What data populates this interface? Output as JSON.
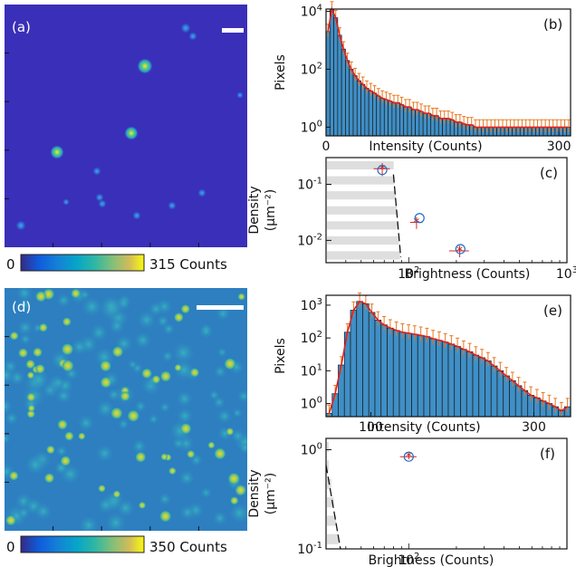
{
  "panels": {
    "a": {
      "letter": "(a)",
      "cbar_min": "0",
      "cbar_max": "315 Counts"
    },
    "d": {
      "letter": "(d)",
      "cbar_min": "0",
      "cbar_max": "350 Counts"
    }
  },
  "colors": {
    "bar_fill": "#3f8fc6",
    "fit_line": "#e02020",
    "error": "#e87820",
    "point_red": "#c21818",
    "circle_blue": "#1f6fc6",
    "image_bg_a": "#3a2fb8",
    "image_bg_d": "#2d7fc0"
  },
  "chart_data": [
    {
      "id": "b",
      "letter": "(b)",
      "type": "bar",
      "xlabel": "Intensity (Counts)",
      "ylabel": "Pixels",
      "yscale": "log",
      "xlim": [
        0,
        315
      ],
      "ylim": [
        0.5,
        12000
      ],
      "x_tick_labels": [
        "0",
        "300"
      ],
      "y_tick_labels": [
        "10^0",
        "10^2",
        "10^4"
      ],
      "bin_width": 5,
      "x": [
        0,
        5,
        10,
        15,
        20,
        25,
        30,
        35,
        40,
        45,
        50,
        55,
        60,
        65,
        70,
        75,
        80,
        85,
        90,
        95,
        100,
        105,
        110,
        115,
        120,
        125,
        130,
        135,
        140,
        145,
        150,
        155,
        160,
        165,
        170,
        175,
        180,
        185,
        190,
        195,
        200,
        205,
        210,
        215,
        220,
        225,
        230,
        235,
        240,
        245,
        250,
        255,
        260,
        265,
        270,
        275,
        280,
        285,
        290,
        295,
        300,
        305,
        310
      ],
      "values": [
        2000,
        12000,
        6000,
        1500,
        500,
        200,
        100,
        60,
        40,
        30,
        22,
        18,
        15,
        12,
        10,
        9,
        8,
        7,
        7,
        6,
        5,
        5,
        4,
        4,
        3.5,
        3,
        3,
        2.5,
        2.5,
        2,
        2,
        2,
        1.8,
        1.5,
        1.5,
        1.3,
        1.2,
        1.2,
        1,
        1,
        1,
        1,
        1,
        1,
        1,
        1,
        1,
        1,
        1,
        1,
        1,
        1,
        1,
        1,
        1,
        1,
        1,
        1,
        1,
        1,
        1,
        1,
        1
      ]
    },
    {
      "id": "c",
      "letter": "(c)",
      "type": "scatter",
      "xlabel": "Brightness (Counts)",
      "ylabel": "Density (μm⁻²)",
      "xscale": "log",
      "yscale": "log",
      "xlim": [
        30,
        1000
      ],
      "ylim": [
        0.004,
        0.3
      ],
      "x_tick_labels": [
        "10^2",
        "10^3"
      ],
      "y_tick_labels": [
        "10^-2",
        "10^-1"
      ],
      "series": [
        {
          "name": "",
          "marker": "star",
          "x": [
            68,
            112,
            210
          ],
          "y": [
            0.19,
            0.021,
            0.0065
          ],
          "xerr": [
            8,
            10,
            30
          ],
          "yerr": [
            0.05,
            0.005,
            0.0015
          ]
        },
        {
          "name": "",
          "marker": "circle",
          "x": [
            68,
            117,
            212
          ],
          "y": [
            0.18,
            0.025,
            0.007
          ]
        }
      ],
      "threshold_line": {
        "x": [
          80,
          89
        ],
        "y": [
          0.15,
          0.005
        ]
      }
    },
    {
      "id": "e",
      "letter": "(e)",
      "type": "bar",
      "xlabel": "Intensity (Counts)",
      "ylabel": "Pixels",
      "yscale": "log",
      "xlim": [
        45,
        345
      ],
      "ylim": [
        0.4,
        2000
      ],
      "x_tick_labels": [
        "100",
        "300"
      ],
      "y_tick_labels": [
        "10^0",
        "10^1",
        "10^2",
        "10^3"
      ],
      "bin_width": 7.5,
      "x": [
        45,
        52.5,
        60,
        67.5,
        75,
        82.5,
        90,
        97.5,
        105,
        112.5,
        120,
        127.5,
        135,
        142.5,
        150,
        157.5,
        165,
        172.5,
        180,
        187.5,
        195,
        202.5,
        210,
        217.5,
        225,
        232.5,
        240,
        247.5,
        255,
        262.5,
        270,
        277.5,
        285,
        292.5,
        300,
        307.5,
        315,
        322.5,
        330,
        337.5
      ],
      "values": [
        0.5,
        2,
        15,
        150,
        700,
        1300,
        1100,
        600,
        350,
        250,
        200,
        170,
        150,
        140,
        130,
        120,
        110,
        95,
        85,
        75,
        65,
        55,
        45,
        38,
        30,
        25,
        20,
        14,
        10,
        7,
        5,
        3.5,
        2.5,
        1.8,
        1.5,
        1.2,
        1,
        0.8,
        0.6,
        0.8
      ]
    },
    {
      "id": "f",
      "letter": "(f)",
      "type": "scatter",
      "xlabel": "Brightness (Counts)",
      "ylabel": "Density (μm⁻²)",
      "xscale": "log",
      "yscale": "log",
      "xlim": [
        30,
        1000
      ],
      "ylim": [
        0.1,
        1.3
      ],
      "x_tick_labels": [
        "10^2"
      ],
      "y_tick_labels": [
        "10^-1",
        "10^0"
      ],
      "series": [
        {
          "name": "",
          "marker": "star",
          "x": [
            100
          ],
          "y": [
            0.85
          ],
          "xerr": [
            12
          ],
          "yerr": [
            0.05
          ]
        },
        {
          "name": "",
          "marker": "circle",
          "x": [
            100
          ],
          "y": [
            0.85
          ]
        }
      ],
      "threshold_line": {
        "x": [
          30,
          37
        ],
        "y": [
          0.7,
          0.1
        ]
      }
    }
  ]
}
